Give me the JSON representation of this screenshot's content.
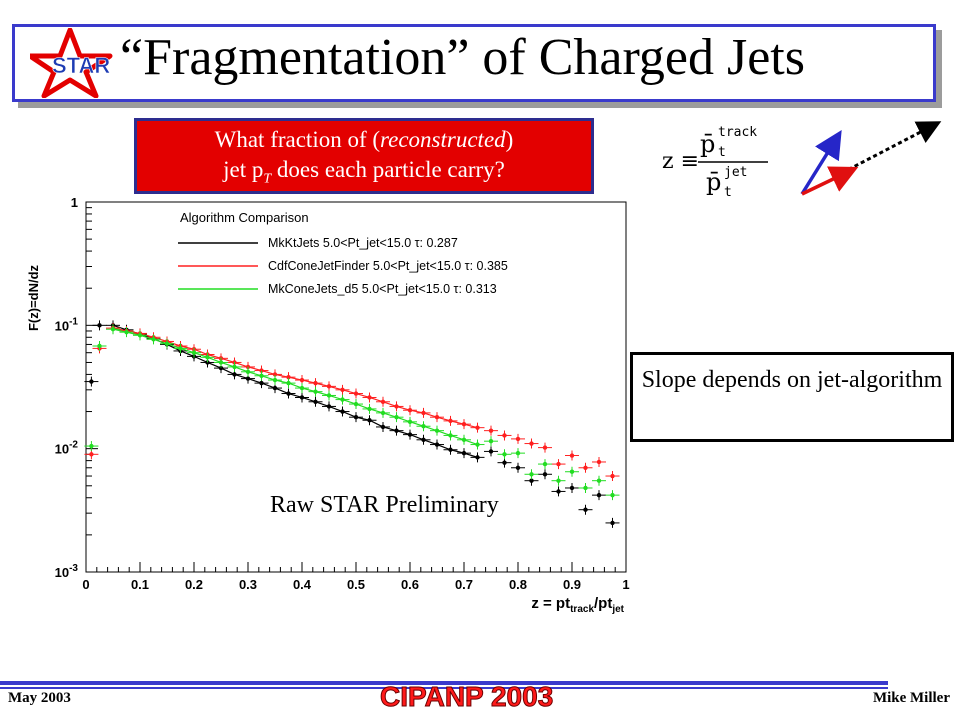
{
  "slide": {
    "title": "“Fragmentation” of Charged Jets",
    "logo_text": "STAR",
    "question_part1": "What fraction of (",
    "question_em": "reconstructed",
    "question_part2": ")",
    "question_line2_a": "jet p",
    "question_line2_sub": "T",
    "question_line2_b": " does each particle carry?",
    "formula_lhs": "z ≡",
    "formula_num": "p̄",
    "formula_num_sup": "track",
    "formula_num_sub": "t",
    "formula_den": "p̄",
    "formula_den_sup": "jet",
    "formula_den_sub": "t",
    "slope_text": "Slope depends on jet-algorithm",
    "raw_label": "Raw STAR Preliminary",
    "footer_left": "May 2003",
    "footer_center": "CIPANP 2003",
    "footer_right": "Mike Miller",
    "colors": {
      "title_border": "#3a3acc",
      "question_bg": "#e30000",
      "arrow_blue": "#2626c8",
      "arrow_red": "#e01010"
    }
  },
  "chart_data": {
    "type": "scatter",
    "title": "Algorithm Comparison",
    "xlabel": "z = pt_track/pt_jet",
    "ylabel": "F(z)=dN/dz",
    "xlim": [
      0,
      1
    ],
    "ylim": [
      0.001,
      1
    ],
    "yscale": "log",
    "x_ticks": [
      "0",
      "0.1",
      "0.2",
      "0.3",
      "0.4",
      "0.5",
      "0.6",
      "0.7",
      "0.8",
      "0.9",
      "1"
    ],
    "y_ticks": [
      "10^-3",
      "10^-2",
      "10^-1",
      "1"
    ],
    "legend_title": "Algorithm Comparison",
    "legend_position": "top",
    "x": [
      0.01,
      0.025,
      0.05,
      0.075,
      0.1,
      0.125,
      0.15,
      0.175,
      0.2,
      0.225,
      0.25,
      0.275,
      0.3,
      0.325,
      0.35,
      0.375,
      0.4,
      0.425,
      0.45,
      0.475,
      0.5,
      0.525,
      0.55,
      0.575,
      0.6,
      0.625,
      0.65,
      0.675,
      0.7,
      0.725,
      0.75,
      0.775,
      0.8,
      0.825,
      0.85,
      0.875,
      0.9,
      0.925,
      0.95,
      0.975
    ],
    "series": [
      {
        "name": "MkKtJets 5.0<Pt_jet<15.0 τ: 0.287",
        "color": "#000000",
        "values": [
          0.035,
          0.1,
          0.1,
          0.092,
          0.085,
          0.078,
          0.07,
          0.062,
          0.056,
          0.05,
          0.045,
          0.04,
          0.037,
          0.034,
          0.031,
          0.028,
          0.026,
          0.024,
          0.022,
          0.02,
          0.018,
          0.017,
          0.015,
          0.014,
          0.013,
          0.0118,
          0.0108,
          0.0098,
          0.0092,
          0.0085,
          0.0095,
          0.0077,
          0.007,
          0.0055,
          0.0062,
          0.0045,
          0.0048,
          0.0032,
          0.0042,
          0.0025
        ]
      },
      {
        "name": "CdfConeJetFinder 5.0<Pt_jet<15.0 τ: 0.385",
        "color": "#ff2020",
        "values": [
          0.009,
          0.065,
          0.095,
          0.09,
          0.086,
          0.08,
          0.074,
          0.068,
          0.064,
          0.058,
          0.054,
          0.05,
          0.046,
          0.043,
          0.04,
          0.038,
          0.036,
          0.034,
          0.032,
          0.03,
          0.028,
          0.026,
          0.024,
          0.022,
          0.0205,
          0.0195,
          0.018,
          0.0168,
          0.0158,
          0.0148,
          0.014,
          0.0128,
          0.012,
          0.011,
          0.0102,
          0.0075,
          0.0088,
          0.007,
          0.0078,
          0.006
        ]
      },
      {
        "name": "MkConeJets_d5 5.0<Pt_jet<15.0 τ: 0.313",
        "color": "#22dd22",
        "values": [
          0.0105,
          0.068,
          0.093,
          0.088,
          0.083,
          0.077,
          0.071,
          0.065,
          0.06,
          0.055,
          0.05,
          0.046,
          0.042,
          0.039,
          0.036,
          0.034,
          0.031,
          0.029,
          0.027,
          0.025,
          0.023,
          0.021,
          0.0195,
          0.018,
          0.0165,
          0.0152,
          0.014,
          0.0128,
          0.0118,
          0.0108,
          0.0115,
          0.009,
          0.0092,
          0.0062,
          0.0075,
          0.0055,
          0.0065,
          0.0048,
          0.0055,
          0.0042
        ]
      }
    ]
  }
}
